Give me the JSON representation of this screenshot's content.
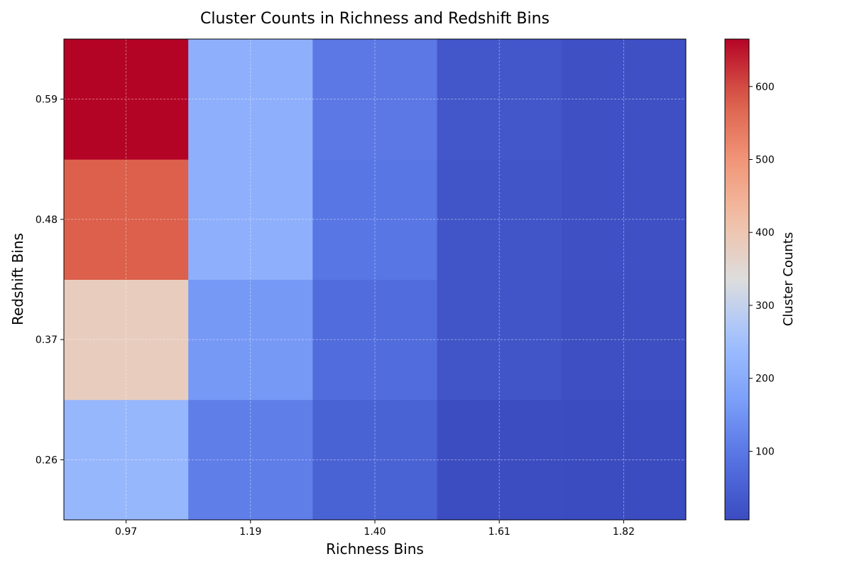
{
  "chart_data": {
    "type": "heatmap",
    "title": "Cluster Counts in Richness and Redshift Bins",
    "xlabel": "Richness Bins",
    "ylabel": "Redshift Bins",
    "x_categories": [
      "0.97",
      "1.19",
      "1.40",
      "1.61",
      "1.82"
    ],
    "y_categories": [
      "0.26",
      "0.37",
      "0.48",
      "0.59"
    ],
    "values": [
      [
        230,
        110,
        55,
        8,
        6
      ],
      [
        380,
        160,
        75,
        25,
        12
      ],
      [
        580,
        210,
        95,
        25,
        15
      ],
      [
        665,
        210,
        100,
        30,
        15
      ]
    ],
    "colorbar": {
      "label": "Cluster Counts",
      "vmin": 6,
      "vmax": 665,
      "ticks": [
        100,
        200,
        300,
        400,
        500,
        600
      ]
    },
    "colormap": "coolwarm",
    "grid": true
  }
}
